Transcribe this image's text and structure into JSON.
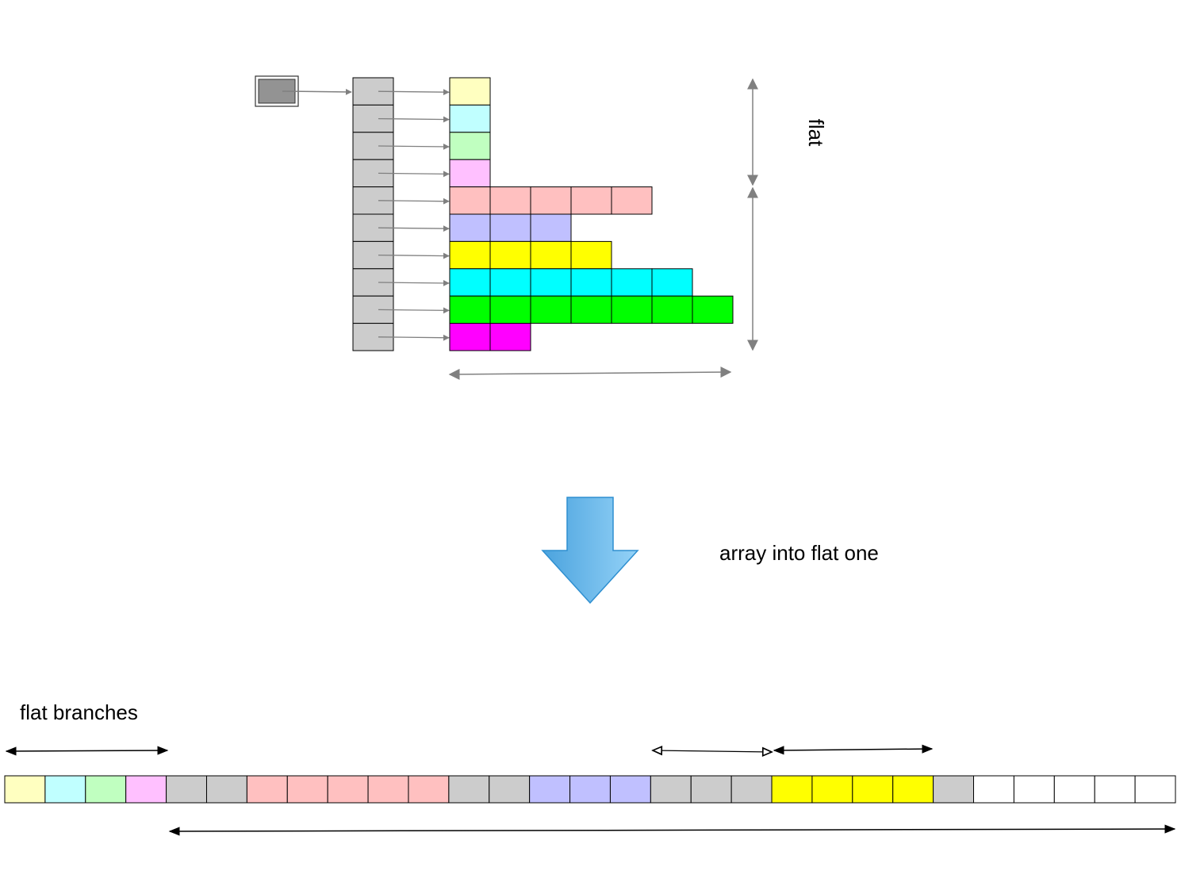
{
  "labels": {
    "flat_vertical": "flat",
    "transform": "array into flat one",
    "flat_branches": "flat branches"
  },
  "colors": {
    "pointer": "#939393",
    "index": "#cccccc",
    "empty": "#ffffff",
    "arrow_gray": "#808080",
    "arrow_black": "#000000",
    "down_arrow_light": "#94d2f7",
    "down_arrow_dark": "#4ba3de",
    "down_arrow_stroke": "#2f8fd0"
  },
  "nested_array": {
    "rows": [
      {
        "color": "#ffffc0",
        "length": 1
      },
      {
        "color": "#c0ffff",
        "length": 1
      },
      {
        "color": "#c0ffc0",
        "length": 1
      },
      {
        "color": "#ffc0ff",
        "length": 1
      },
      {
        "color": "#ffc0c0",
        "length": 5
      },
      {
        "color": "#c0c0ff",
        "length": 3
      },
      {
        "color": "#ffff00",
        "length": 4
      },
      {
        "color": "#00ffff",
        "length": 6
      },
      {
        "color": "#00ff00",
        "length": 7
      },
      {
        "color": "#ff00ff",
        "length": 2
      }
    ]
  },
  "flat_array": {
    "cells": [
      "#ffffc0",
      "#c0ffff",
      "#c0ffc0",
      "#ffc0ff",
      "#cccccc",
      "#cccccc",
      "#ffc0c0",
      "#ffc0c0",
      "#ffc0c0",
      "#ffc0c0",
      "#ffc0c0",
      "#cccccc",
      "#cccccc",
      "#c0c0ff",
      "#c0c0ff",
      "#c0c0ff",
      "#cccccc",
      "#cccccc",
      "#cccccc",
      "#ffff00",
      "#ffff00",
      "#ffff00",
      "#ffff00",
      "#cccccc",
      "#ffffff",
      "#ffffff",
      "#ffffff",
      "#ffffff",
      "#ffffff"
    ]
  }
}
